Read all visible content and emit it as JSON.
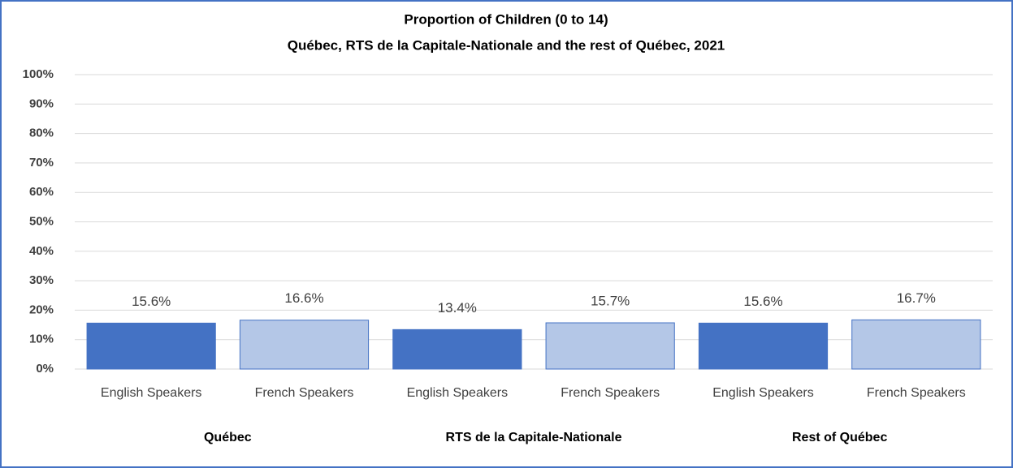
{
  "chart_data": {
    "type": "bar",
    "title": "Proportion of Children (0 to 14)",
    "subtitle": "Québec, RTS de la Capitale-Nationale  and the rest of Québec, 2021",
    "categories": [
      "English Speakers",
      "French Speakers",
      "English Speakers",
      "French Speakers",
      "English Speakers",
      "French Speakers"
    ],
    "groups": [
      "Québec",
      "RTS de la Capitale-Nationale",
      "Rest of Québec"
    ],
    "values": [
      15.6,
      16.6,
      13.4,
      15.7,
      15.6,
      16.7
    ],
    "value_labels": [
      "15.6%",
      "16.6%",
      "13.4%",
      "15.7%",
      "15.6%",
      "16.7%"
    ],
    "colors": [
      "#4472c4",
      "#b4c7e7",
      "#4472c4",
      "#b4c7e7",
      "#4472c4",
      "#b4c7e7"
    ],
    "ylim": [
      0,
      100
    ],
    "yticks": [
      {
        "value": 0,
        "label": "0%"
      },
      {
        "value": 10,
        "label": "10%"
      },
      {
        "value": 20,
        "label": "20%"
      },
      {
        "value": 30,
        "label": "30%"
      },
      {
        "value": 40,
        "label": "40%"
      },
      {
        "value": 50,
        "label": "50%"
      },
      {
        "value": 60,
        "label": "60%"
      },
      {
        "value": 70,
        "label": "70%"
      },
      {
        "value": 80,
        "label": "80%"
      },
      {
        "value": 90,
        "label": "90%"
      },
      {
        "value": 100,
        "label": "100%"
      }
    ],
    "grid": true
  }
}
